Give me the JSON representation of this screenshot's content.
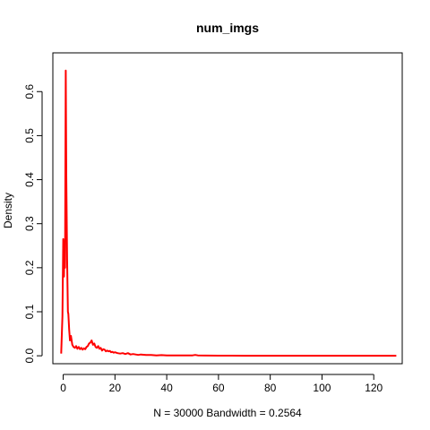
{
  "chart_data": {
    "type": "line",
    "title": "num_imgs",
    "xlabel": "N = 30000   Bandwidth = 0.2564",
    "ylabel": "Density",
    "xlim": [
      -4,
      131
    ],
    "ylim": [
      -0.018,
      0.688
    ],
    "x_ticks": [
      0,
      20,
      40,
      60,
      80,
      100,
      120
    ],
    "y_ticks": [
      0.0,
      0.1,
      0.2,
      0.3,
      0.4,
      0.5,
      0.6
    ],
    "x_tick_labels": [
      "0",
      "20",
      "40",
      "60",
      "80",
      "100",
      "120"
    ],
    "y_tick_labels": [
      "0.0",
      "0.1",
      "0.2",
      "0.3",
      "0.4",
      "0.5",
      "0.6"
    ],
    "grid": false,
    "series": [
      {
        "color": "#ff0000",
        "x": [
          -0.77,
          -0.3,
          0.0,
          0.3,
          0.5,
          0.7,
          1.0,
          1.2,
          1.5,
          1.8,
          2.0,
          2.3,
          2.6,
          3.0,
          3.5,
          4.0,
          4.5,
          5.0,
          5.5,
          6.0,
          6.5,
          7.0,
          7.5,
          8.0,
          8.5,
          9.0,
          9.5,
          10.0,
          10.5,
          11.0,
          11.5,
          12.0,
          12.5,
          13.0,
          13.5,
          14.0,
          14.5,
          15.0,
          15.5,
          16.0,
          16.5,
          17.0,
          17.5,
          18.0,
          18.5,
          19.0,
          19.5,
          20.0,
          21.0,
          22.0,
          23.0,
          24.0,
          25.0,
          26.0,
          27.0,
          28.0,
          29.0,
          30.0,
          32.0,
          34.0,
          36.0,
          38.0,
          40.0,
          42.0,
          45.0,
          48.0,
          50.0,
          51.0,
          52.0,
          55.0,
          60.0,
          65.0,
          70.0,
          80.0,
          90.0,
          100.0,
          110.0,
          120.0,
          128.7
        ],
        "y": [
          0.005,
          0.09,
          0.265,
          0.18,
          0.26,
          0.2,
          0.648,
          0.41,
          0.22,
          0.1,
          0.095,
          0.06,
          0.035,
          0.045,
          0.025,
          0.02,
          0.018,
          0.022,
          0.016,
          0.02,
          0.015,
          0.018,
          0.014,
          0.017,
          0.015,
          0.02,
          0.022,
          0.028,
          0.03,
          0.035,
          0.025,
          0.028,
          0.02,
          0.018,
          0.022,
          0.016,
          0.018,
          0.012,
          0.015,
          0.014,
          0.01,
          0.012,
          0.01,
          0.011,
          0.008,
          0.009,
          0.007,
          0.008,
          0.006,
          0.005,
          0.006,
          0.004,
          0.006,
          0.003,
          0.004,
          0.003,
          0.002,
          0.003,
          0.002,
          0.002,
          0.001,
          0.0015,
          0.001,
          0.001,
          0.0008,
          0.0007,
          0.001,
          0.002,
          0.001,
          0.0005,
          0.0004,
          0.0003,
          0.0002,
          0.0002,
          0.0001,
          0.0001,
          0.0001,
          0.0001,
          0.0001
        ]
      }
    ]
  }
}
